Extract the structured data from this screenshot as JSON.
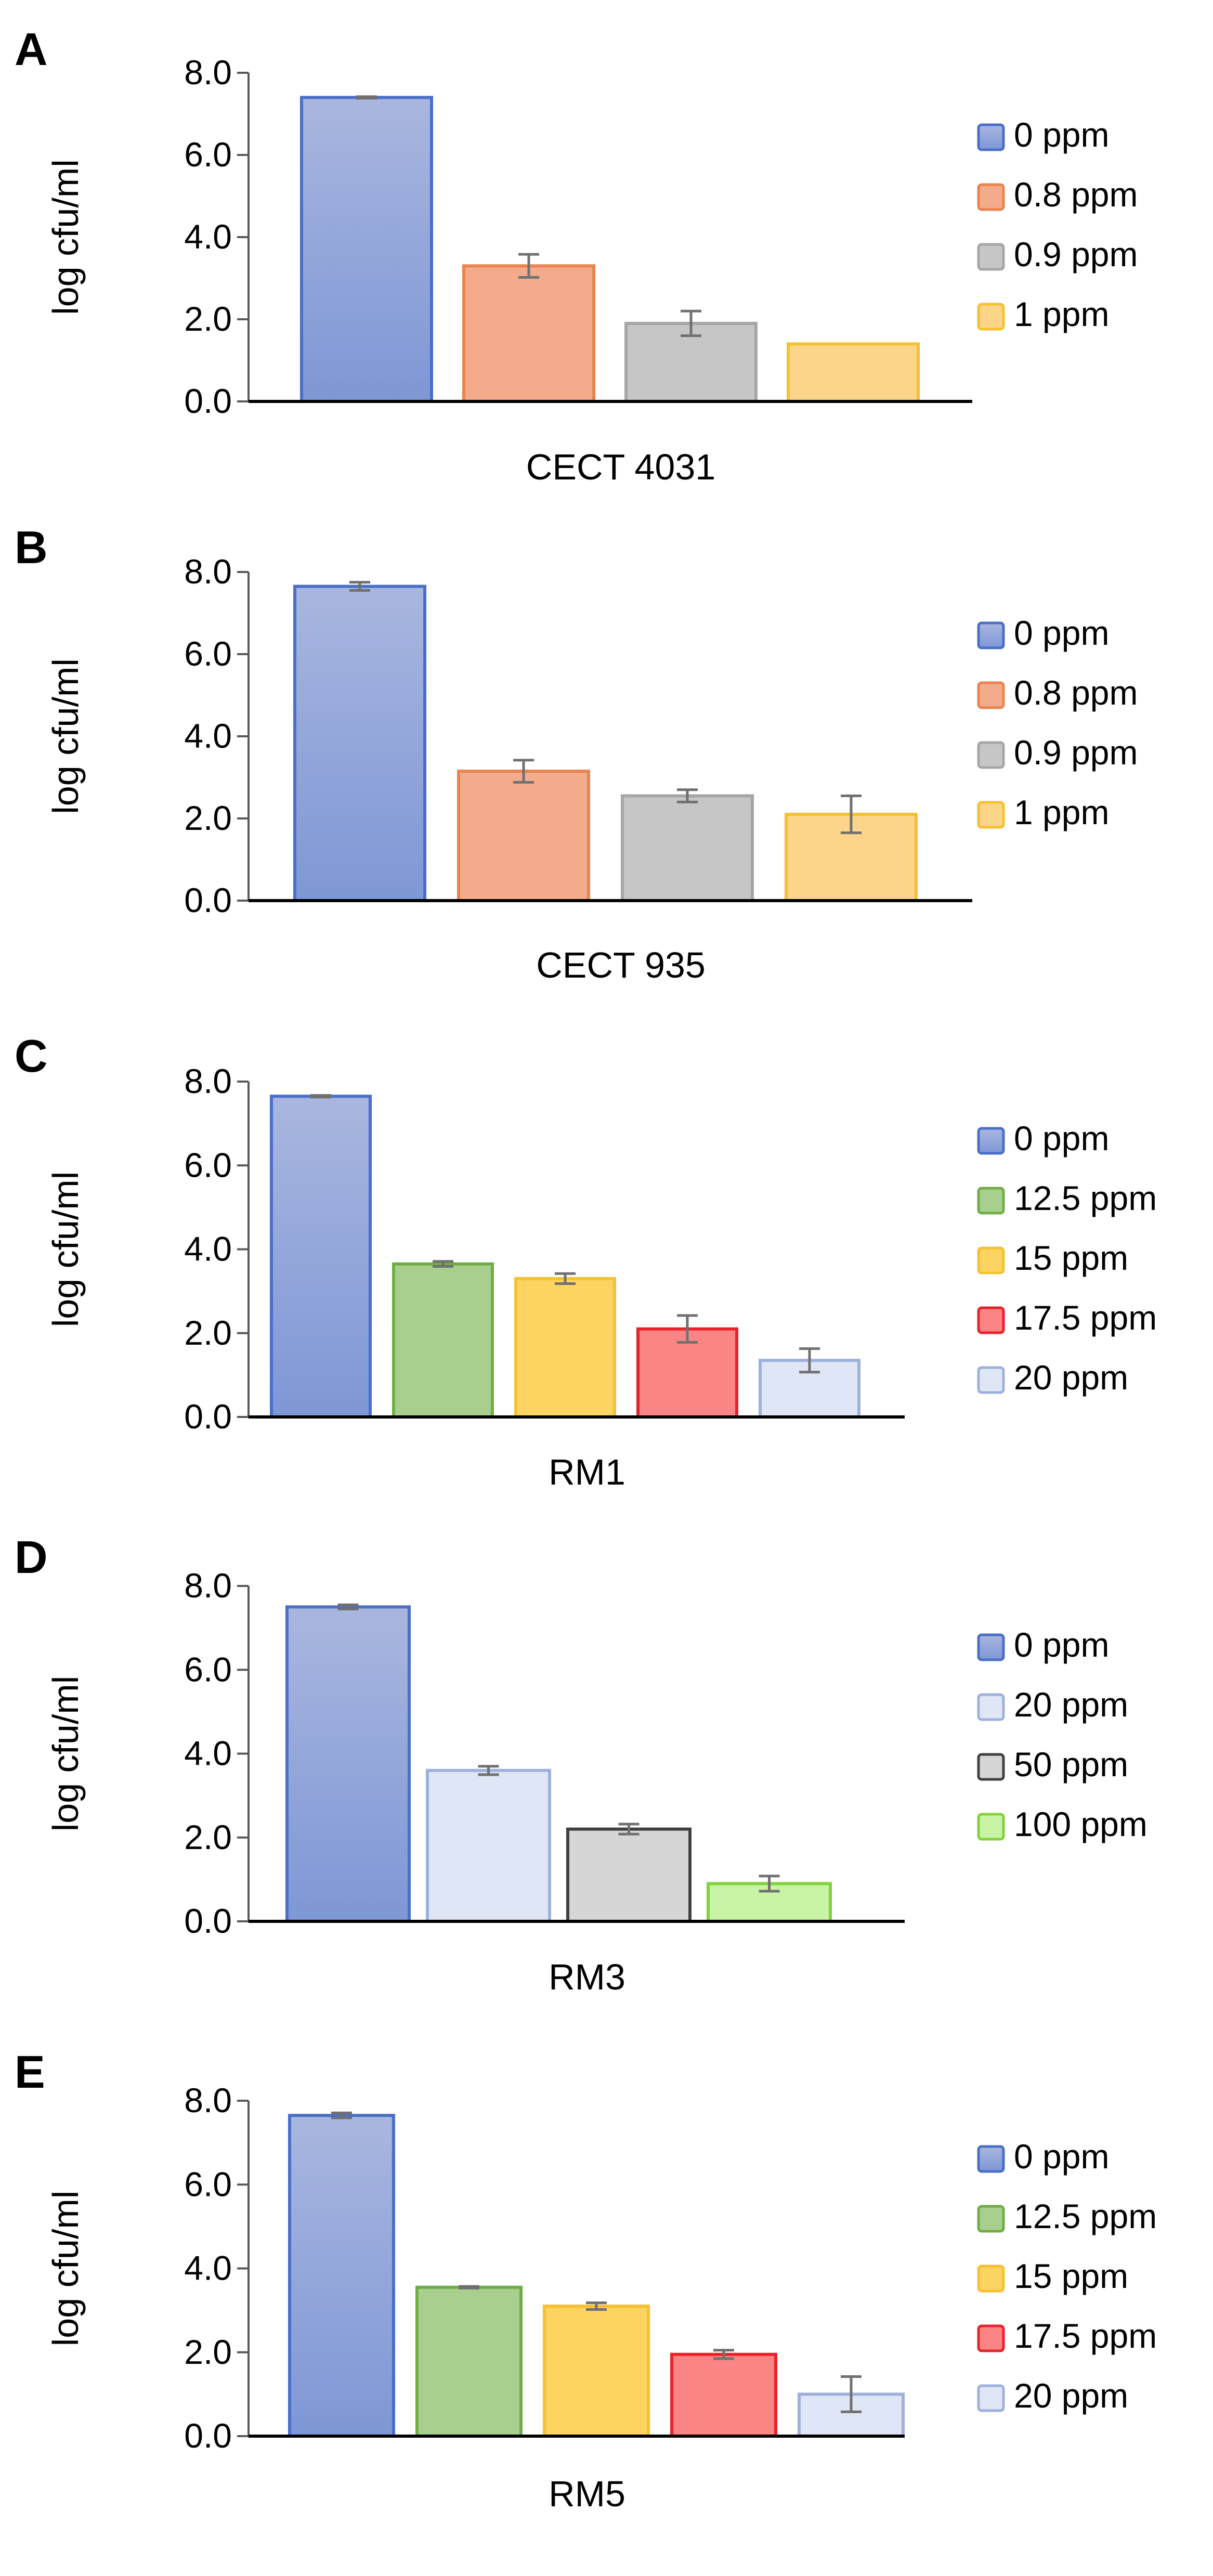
{
  "chart_data": [
    {
      "panel": "A",
      "type": "bar",
      "title": "",
      "xlabel": "CECT 4031",
      "ylabel": "log cfu/ml",
      "ylim": [
        0,
        8
      ],
      "yticks": [
        "0.0",
        "2.0",
        "4.0",
        "6.0",
        "8.0"
      ],
      "grid": false,
      "legend_position": "right",
      "series": [
        {
          "name": "0 ppm",
          "value": 7.4,
          "error": 0.02,
          "color": "#8fa3d6",
          "edge": "#4a6fc7"
        },
        {
          "name": "0.8 ppm",
          "value": 3.3,
          "error": 0.28,
          "color": "#f3ab8c",
          "edge": "#e9834f"
        },
        {
          "name": "0.9 ppm",
          "value": 1.9,
          "error": 0.3,
          "color": "#c6c6c6",
          "edge": "#a6a6a6"
        },
        {
          "name": "1 ppm",
          "value": 1.4,
          "error": 0,
          "color": "#fdd58a",
          "edge": "#f5c131"
        }
      ]
    },
    {
      "panel": "B",
      "type": "bar",
      "title": "",
      "xlabel": "CECT 935",
      "ylabel": "log cfu/ml",
      "ylim": [
        0,
        8
      ],
      "yticks": [
        "0.0",
        "2.0",
        "4.0",
        "6.0",
        "8.0"
      ],
      "grid": false,
      "legend_position": "right",
      "series": [
        {
          "name": "0 ppm",
          "value": 7.65,
          "error": 0.1,
          "color": "#8fa3d6",
          "edge": "#4a6fc7"
        },
        {
          "name": "0.8 ppm",
          "value": 3.15,
          "error": 0.27,
          "color": "#f3ab8c",
          "edge": "#e9834f"
        },
        {
          "name": "0.9 ppm",
          "value": 2.55,
          "error": 0.15,
          "color": "#c6c6c6",
          "edge": "#a6a6a6"
        },
        {
          "name": "1 ppm",
          "value": 2.1,
          "error": 0.45,
          "color": "#fdd58a",
          "edge": "#f5c131"
        }
      ]
    },
    {
      "panel": "C",
      "type": "bar",
      "title": "",
      "xlabel": "RM1",
      "ylabel": "log cfu/ml",
      "ylim": [
        0,
        8
      ],
      "yticks": [
        "0.0",
        "2.0",
        "4.0",
        "6.0",
        "8.0"
      ],
      "grid": false,
      "legend_position": "right",
      "series": [
        {
          "name": "0 ppm",
          "value": 7.65,
          "error": 0.02,
          "color": "#8fa3d6",
          "edge": "#4a6fc7"
        },
        {
          "name": "12.5 ppm",
          "value": 3.65,
          "error": 0.06,
          "color": "#a8cf8e",
          "edge": "#70ad47"
        },
        {
          "name": "15 ppm",
          "value": 3.3,
          "error": 0.12,
          "color": "#fdd462",
          "edge": "#f5c131"
        },
        {
          "name": "17.5 ppm",
          "value": 2.1,
          "error": 0.32,
          "color": "#fb8585",
          "edge": "#e8222a"
        },
        {
          "name": "20 ppm",
          "value": 1.35,
          "error": 0.28,
          "color": "#dfe6f5",
          "edge": "#9db1dc"
        }
      ]
    },
    {
      "panel": "D",
      "type": "bar",
      "title": "",
      "xlabel": "RM3",
      "ylabel": "log cfu/ml",
      "ylim": [
        0,
        8
      ],
      "yticks": [
        "0.0",
        "2.0",
        "4.0",
        "6.0",
        "8.0"
      ],
      "grid": false,
      "legend_position": "right",
      "series": [
        {
          "name": "0 ppm",
          "value": 7.5,
          "error": 0.05,
          "color": "#8fa3d6",
          "edge": "#4a6fc7"
        },
        {
          "name": "20 ppm",
          "value": 3.6,
          "error": 0.1,
          "color": "#dfe6f5",
          "edge": "#9db1dc"
        },
        {
          "name": "50 ppm",
          "value": 2.2,
          "error": 0.12,
          "color": "#d6d6d6",
          "edge": "#404040"
        },
        {
          "name": "100 ppm",
          "value": 0.9,
          "error": 0.18,
          "color": "#c9f3a5",
          "edge": "#7fd33c"
        }
      ]
    },
    {
      "panel": "E",
      "type": "bar",
      "title": "",
      "xlabel": "RM5",
      "ylabel": "log cfu/ml",
      "ylim": [
        0,
        8
      ],
      "yticks": [
        "0.0",
        "2.0",
        "4.0",
        "6.0",
        "8.0"
      ],
      "grid": false,
      "legend_position": "right",
      "series": [
        {
          "name": "0 ppm",
          "value": 7.65,
          "error": 0.06,
          "color": "#8fa3d6",
          "edge": "#4a6fc7"
        },
        {
          "name": "12.5 ppm",
          "value": 3.55,
          "error": 0.02,
          "color": "#a8cf8e",
          "edge": "#70ad47"
        },
        {
          "name": "15 ppm",
          "value": 3.1,
          "error": 0.08,
          "color": "#fdd462",
          "edge": "#f5c131"
        },
        {
          "name": "17.5 ppm",
          "value": 1.95,
          "error": 0.1,
          "color": "#fb8585",
          "edge": "#e8222a"
        },
        {
          "name": "20 ppm",
          "value": 1.0,
          "error": 0.42,
          "color": "#dfe6f5",
          "edge": "#9db1dc"
        }
      ]
    }
  ]
}
